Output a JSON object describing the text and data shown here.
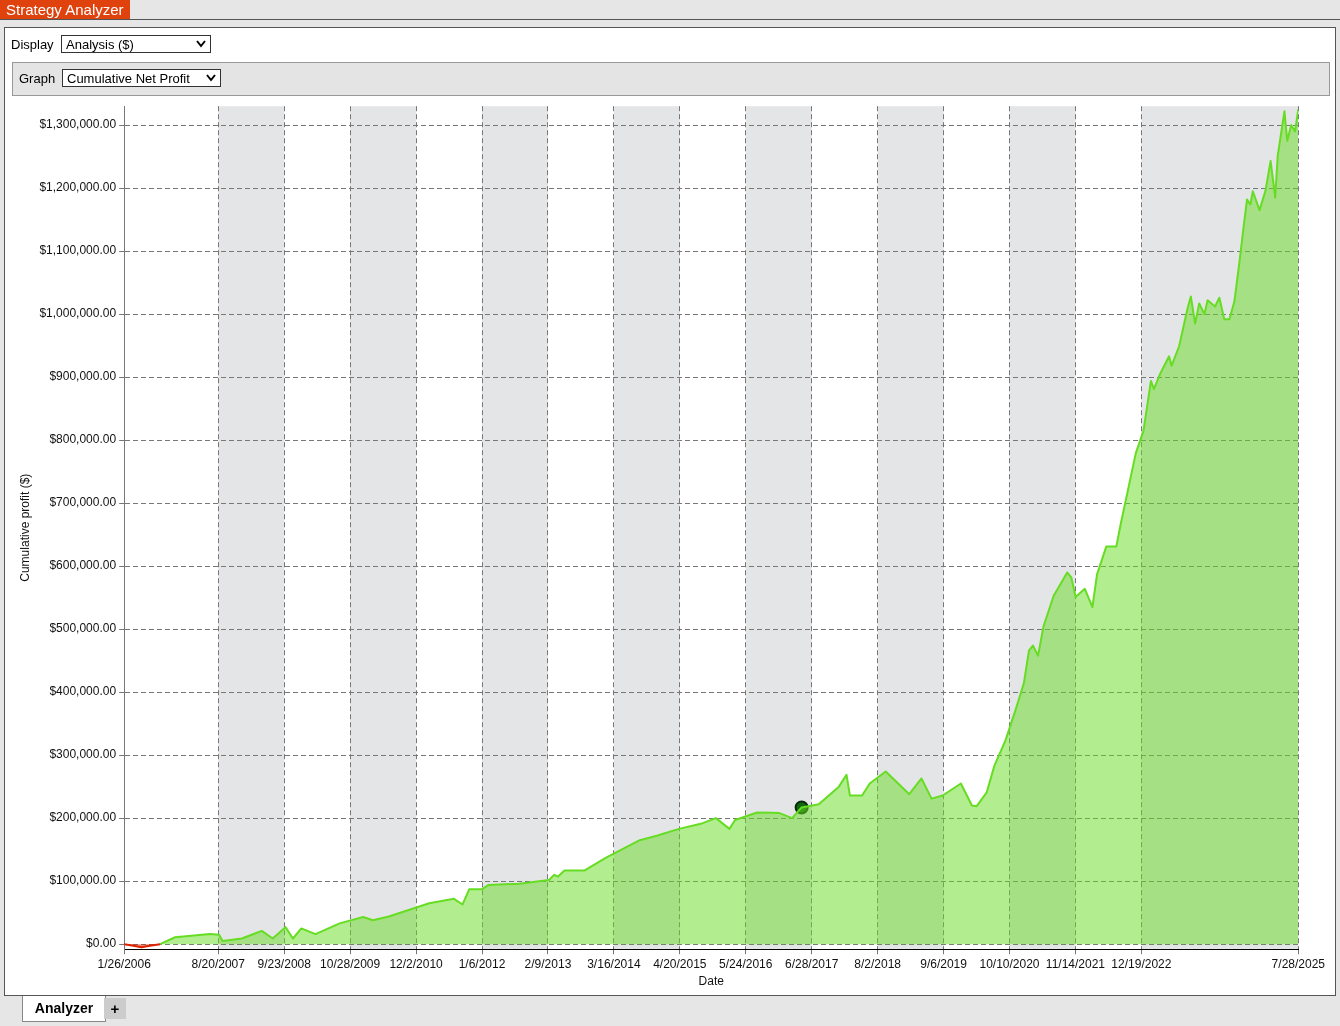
{
  "chart_data": {
    "type": "area",
    "title": "Strategy Analyzer",
    "xlabel": "Date",
    "ylabel": "Cumulative profit ($)",
    "annotations": [
      "Display",
      "Analysis ($)",
      "Graph",
      "Cumulative Net Profit",
      "Analyzer",
      "+"
    ],
    "xlim": [
      "2006-01-26",
      "2025-07-28"
    ],
    "xticks": [
      {
        "value": "2006-01-26",
        "label": "1/26/2006"
      },
      {
        "value": "2007-08-20",
        "label": "8/20/2007"
      },
      {
        "value": "2008-09-23",
        "label": "9/23/2008"
      },
      {
        "value": "2009-10-28",
        "label": "10/28/2009"
      },
      {
        "value": "2010-12-02",
        "label": "12/2/2010"
      },
      {
        "value": "2012-01-06",
        "label": "1/6/2012"
      },
      {
        "value": "2013-02-09",
        "label": "2/9/2013"
      },
      {
        "value": "2014-03-16",
        "label": "3/16/2014"
      },
      {
        "value": "2015-04-20",
        "label": "4/20/2015"
      },
      {
        "value": "2016-05-24",
        "label": "5/24/2016"
      },
      {
        "value": "2017-06-28",
        "label": "6/28/2017"
      },
      {
        "value": "2018-08-02",
        "label": "8/2/2018"
      },
      {
        "value": "2019-09-06",
        "label": "9/6/2019"
      },
      {
        "value": "2020-10-10",
        "label": "10/10/2020"
      },
      {
        "value": "2021-11-14",
        "label": "11/14/2021"
      },
      {
        "value": "2022-12-19",
        "label": "12/19/2022"
      },
      {
        "value": "2025-07-28",
        "label": "7/28/2025"
      }
    ],
    "ylim": [
      -8000,
      1330000
    ],
    "yticks": [
      {
        "value": 0,
        "label": "$0.00"
      },
      {
        "value": 100000,
        "label": "$100,000.00"
      },
      {
        "value": 200000,
        "label": "$200,000.00"
      },
      {
        "value": 300000,
        "label": "$300,000.00"
      },
      {
        "value": 400000,
        "label": "$400,000.00"
      },
      {
        "value": 500000,
        "label": "$500,000.00"
      },
      {
        "value": 600000,
        "label": "$600,000.00"
      },
      {
        "value": 700000,
        "label": "$700,000.00"
      },
      {
        "value": 800000,
        "label": "$800,000.00"
      },
      {
        "value": 900000,
        "label": "$900,000.00"
      },
      {
        "value": 1000000,
        "label": "$1,000,000.00"
      },
      {
        "value": 1100000,
        "label": "$1,100,000.00"
      },
      {
        "value": 1200000,
        "label": "$1,200,000.00"
      },
      {
        "value": 1300000,
        "label": "$1,300,000.00"
      }
    ],
    "grid": true,
    "legend": false,
    "line_style": "solid",
    "bands": [
      {
        "axis": "x",
        "from": "2007-08-20",
        "to": "2008-09-23",
        "color": "#e4e5e7"
      },
      {
        "axis": "x",
        "from": "2009-10-28",
        "to": "2010-12-02",
        "color": "#e4e5e7"
      },
      {
        "axis": "x",
        "from": "2012-01-06",
        "to": "2013-02-09",
        "color": "#e4e5e7"
      },
      {
        "axis": "x",
        "from": "2014-03-16",
        "to": "2015-04-20",
        "color": "#e4e5e7"
      },
      {
        "axis": "x",
        "from": "2016-05-24",
        "to": "2017-06-28",
        "color": "#e4e5e7"
      },
      {
        "axis": "x",
        "from": "2018-08-02",
        "to": "2019-09-06",
        "color": "#e4e5e7"
      },
      {
        "axis": "x",
        "from": "2020-10-10",
        "to": "2021-11-14",
        "color": "#e4e5e7"
      },
      {
        "axis": "x",
        "from": "2022-12-19",
        "to": "2025-07-28",
        "color": "#e4e5e7"
      }
    ],
    "series": [
      {
        "color": "#dd2200",
        "marker": "none",
        "x": [
          "2006-01-26",
          "2006-03-15",
          "2006-05-10",
          "2006-07-10",
          "2006-09-01"
        ],
        "values": [
          0,
          -2000,
          -5000,
          -2000,
          0
        ]
      },
      {
        "color": "#66dd22",
        "marker": "none",
        "x": [
          "2006-09-01",
          "2006-12-01",
          "2007-07-01",
          "2007-08-25",
          "2007-09-15",
          "2008-01-10",
          "2008-05-10",
          "2008-07-15",
          "2008-10-01",
          "2008-11-15",
          "2009-01-05",
          "2009-04-01",
          "2009-08-25",
          "2010-01-15",
          "2010-03-15",
          "2010-06-20",
          "2011-02-20",
          "2011-07-20",
          "2011-09-10",
          "2011-10-20",
          "2012-01-05",
          "2012-02-15",
          "2012-08-20",
          "2013-02-15",
          "2013-03-20",
          "2013-04-10",
          "2013-05-20",
          "2013-09-20",
          "2014-01-25",
          "2014-08-20",
          "2014-12-01",
          "2015-04-15",
          "2015-08-25",
          "2015-11-25",
          "2016-02-15",
          "2016-03-20",
          "2016-08-01",
          "2016-12-15",
          "2017-03-01",
          "2017-04-28",
          "2017-08-10",
          "2017-12-10",
          "2018-01-25",
          "2018-02-15",
          "2018-04-30",
          "2018-06-15",
          "2018-09-20",
          "2019-02-10",
          "2019-04-25",
          "2019-06-25",
          "2019-09-01",
          "2019-12-20",
          "2020-02-25",
          "2020-03-25",
          "2020-05-25",
          "2020-07-10",
          "2020-09-15",
          "2020-11-10",
          "2021-01-05",
          "2021-02-05",
          "2021-03-01",
          "2021-04-01",
          "2021-05-05",
          "2021-07-05",
          "2021-09-25",
          "2021-10-20",
          "2021-11-15",
          "2022-01-10",
          "2022-02-25",
          "2022-03-25",
          "2022-05-20",
          "2022-07-20",
          "2022-08-15",
          "2022-11-15",
          "2023-01-01",
          "2023-02-15",
          "2023-03-05",
          "2023-04-15",
          "2023-06-05",
          "2023-06-20",
          "2023-08-05",
          "2023-09-25",
          "2023-10-15",
          "2023-11-10",
          "2023-12-05",
          "2024-01-05",
          "2024-01-25",
          "2024-03-10",
          "2024-04-05",
          "2024-05-05",
          "2024-06-05",
          "2024-07-05",
          "2024-08-05",
          "2024-08-30",
          "2024-09-20",
          "2024-10-10",
          "2024-10-25",
          "2024-12-05",
          "2025-01-10",
          "2025-02-10",
          "2025-03-10",
          "2025-03-25",
          "2025-05-05",
          "2025-05-22",
          "2025-06-15",
          "2025-07-08",
          "2025-07-28"
        ],
        "values": [
          0,
          11000,
          16000,
          15000,
          5000,
          9000,
          21000,
          9000,
          27000,
          9000,
          25000,
          16000,
          33000,
          43000,
          38000,
          44000,
          65000,
          72000,
          63000,
          87000,
          87000,
          94000,
          96000,
          102000,
          110000,
          107000,
          117000,
          117000,
          137000,
          165000,
          172000,
          183000,
          191000,
          200000,
          183000,
          197000,
          209000,
          208000,
          200000,
          217000,
          222000,
          250000,
          269000,
          236000,
          236000,
          255000,
          274000,
          238000,
          263000,
          231000,
          236000,
          255000,
          220000,
          219000,
          241000,
          283000,
          323000,
          367000,
          414000,
          466000,
          474000,
          458000,
          505000,
          553000,
          590000,
          582000,
          551000,
          564000,
          535000,
          587000,
          631000,
          631000,
          666000,
          779000,
          815000,
          894000,
          881000,
          907000,
          933000,
          918000,
          949000,
          1009000,
          1028000,
          985000,
          1017000,
          1000000,
          1022000,
          1012000,
          1026000,
          992000,
          992000,
          1020000,
          1083000,
          1138000,
          1182000,
          1174000,
          1195000,
          1165000,
          1196000,
          1243000,
          1185000,
          1251000,
          1322000,
          1275000,
          1300000,
          1290000,
          1325000
        ]
      },
      {
        "type": "scatter",
        "color": "#116611",
        "marker": "circle",
        "x": [
          "2017-04-28"
        ],
        "values": [
          217000
        ]
      }
    ]
  }
}
